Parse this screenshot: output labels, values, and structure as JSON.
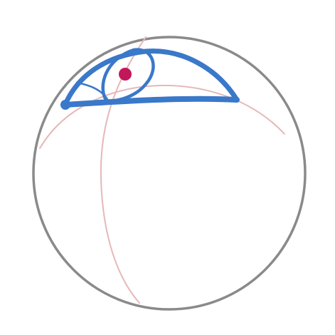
{
  "canvas": {
    "background": "#ffffff"
  },
  "colors": {
    "sphere_outline": "#8a8a8a",
    "guide_lines": "#e6b8b8",
    "eye_stroke": "#3a78c9",
    "iris_dot": "#c2185b"
  },
  "drawing": {
    "subject": "sphere-with-eye-sketch",
    "elements": [
      "sphere-outline",
      "horizontal-guide-curve",
      "vertical-guide-curve",
      "eye-upper-lid",
      "eye-lower-line",
      "iris-outline",
      "iris-dot",
      "eye-corner-dot"
    ]
  }
}
